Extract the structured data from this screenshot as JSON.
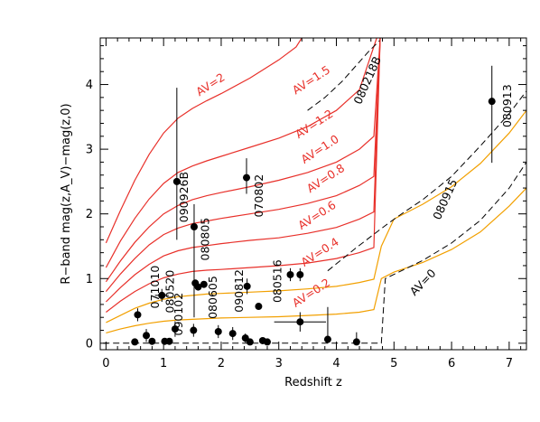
{
  "chart_data": {
    "type": "scatter",
    "title": "",
    "xlabel": "Redshift z",
    "ylabel": "R−band mag(z,A_V)−mag(z,0)",
    "xlim": [
      -0.1,
      7.3
    ],
    "ylim": [
      -0.1,
      4.72
    ],
    "grid": false,
    "legend": "none",
    "xticks": [
      0,
      1,
      2,
      3,
      4,
      5,
      6,
      7
    ],
    "yticks": [
      0,
      1,
      2,
      3,
      4
    ],
    "colors": {
      "av_red": "#e8302a",
      "av_orange": "#f2a000",
      "dashed": "#000000",
      "points": "#000000"
    },
    "curves": [
      {
        "label": "AV=2",
        "color": "red",
        "dash": false,
        "points": [
          [
            0,
            1.55
          ],
          [
            0.25,
            2.05
          ],
          [
            0.5,
            2.52
          ],
          [
            0.75,
            2.92
          ],
          [
            1.0,
            3.25
          ],
          [
            1.25,
            3.48
          ],
          [
            1.5,
            3.63
          ],
          [
            1.75,
            3.75
          ],
          [
            2.0,
            3.86
          ],
          [
            2.5,
            4.1
          ],
          [
            3.0,
            4.38
          ],
          [
            3.3,
            4.58
          ],
          [
            3.4,
            4.72
          ]
        ]
      },
      {
        "label": "AV=1.5",
        "color": "red",
        "dash": false,
        "points": [
          [
            0,
            1.17
          ],
          [
            0.25,
            1.58
          ],
          [
            0.5,
            1.93
          ],
          [
            0.75,
            2.23
          ],
          [
            1.0,
            2.47
          ],
          [
            1.25,
            2.64
          ],
          [
            1.5,
            2.74
          ],
          [
            1.75,
            2.82
          ],
          [
            2.0,
            2.89
          ],
          [
            2.5,
            3.03
          ],
          [
            3.0,
            3.17
          ],
          [
            3.5,
            3.35
          ],
          [
            4.0,
            3.6
          ],
          [
            4.4,
            3.92
          ],
          [
            4.7,
            4.72
          ]
        ]
      },
      {
        "label": "AV=1.2",
        "color": "red",
        "dash": false,
        "points": [
          [
            0,
            0.95
          ],
          [
            0.25,
            1.27
          ],
          [
            0.5,
            1.56
          ],
          [
            0.75,
            1.8
          ],
          [
            1.0,
            2.0
          ],
          [
            1.25,
            2.13
          ],
          [
            1.5,
            2.22
          ],
          [
            1.75,
            2.28
          ],
          [
            2.0,
            2.33
          ],
          [
            2.5,
            2.42
          ],
          [
            3.0,
            2.52
          ],
          [
            3.5,
            2.64
          ],
          [
            4.0,
            2.8
          ],
          [
            4.4,
            3.0
          ],
          [
            4.65,
            3.2
          ],
          [
            4.76,
            4.72
          ]
        ]
      },
      {
        "label": "AV=1.0",
        "color": "red",
        "dash": false,
        "points": [
          [
            0,
            0.8
          ],
          [
            0.25,
            1.07
          ],
          [
            0.5,
            1.31
          ],
          [
            0.75,
            1.52
          ],
          [
            1.0,
            1.68
          ],
          [
            1.25,
            1.78
          ],
          [
            1.5,
            1.85
          ],
          [
            1.75,
            1.89
          ],
          [
            2.0,
            1.93
          ],
          [
            2.5,
            2.0
          ],
          [
            3.0,
            2.07
          ],
          [
            3.5,
            2.16
          ],
          [
            4.0,
            2.28
          ],
          [
            4.4,
            2.44
          ],
          [
            4.65,
            2.58
          ],
          [
            4.76,
            4.72
          ]
        ]
      },
      {
        "label": "AV=0.8",
        "color": "red",
        "dash": false,
        "points": [
          [
            0,
            0.64
          ],
          [
            0.25,
            0.86
          ],
          [
            0.5,
            1.06
          ],
          [
            0.75,
            1.22
          ],
          [
            1.0,
            1.35
          ],
          [
            1.25,
            1.43
          ],
          [
            1.5,
            1.48
          ],
          [
            1.75,
            1.51
          ],
          [
            2.0,
            1.54
          ],
          [
            2.5,
            1.59
          ],
          [
            3.0,
            1.63
          ],
          [
            3.5,
            1.7
          ],
          [
            4.0,
            1.79
          ],
          [
            4.4,
            1.92
          ],
          [
            4.65,
            2.03
          ],
          [
            4.76,
            4.72
          ]
        ]
      },
      {
        "label": "AV=0.6",
        "color": "red",
        "dash": false,
        "points": [
          [
            0,
            0.48
          ],
          [
            0.25,
            0.65
          ],
          [
            0.5,
            0.8
          ],
          [
            0.75,
            0.92
          ],
          [
            1.0,
            1.01
          ],
          [
            1.25,
            1.07
          ],
          [
            1.5,
            1.11
          ],
          [
            1.75,
            1.13
          ],
          [
            2.0,
            1.14
          ],
          [
            2.5,
            1.17
          ],
          [
            3.0,
            1.2
          ],
          [
            3.5,
            1.24
          ],
          [
            4.0,
            1.31
          ],
          [
            4.4,
            1.4
          ],
          [
            4.65,
            1.48
          ],
          [
            4.76,
            4.72
          ]
        ]
      },
      {
        "label": "AV=0.4",
        "color": "orange",
        "dash": false,
        "points": [
          [
            0,
            0.32
          ],
          [
            0.25,
            0.43
          ],
          [
            0.5,
            0.54
          ],
          [
            0.75,
            0.62
          ],
          [
            1.0,
            0.68
          ],
          [
            1.25,
            0.72
          ],
          [
            1.5,
            0.74
          ],
          [
            1.75,
            0.76
          ],
          [
            2.0,
            0.77
          ],
          [
            2.5,
            0.79
          ],
          [
            3.0,
            0.81
          ],
          [
            3.5,
            0.84
          ],
          [
            4.0,
            0.88
          ],
          [
            4.4,
            0.94
          ],
          [
            4.65,
            0.99
          ],
          [
            4.78,
            1.5
          ],
          [
            5.0,
            1.92
          ],
          [
            5.5,
            2.15
          ],
          [
            6.0,
            2.42
          ],
          [
            6.5,
            2.78
          ],
          [
            7.0,
            3.25
          ],
          [
            7.3,
            3.6
          ]
        ]
      },
      {
        "label": "AV=0.2",
        "color": "orange",
        "dash": false,
        "points": [
          [
            0,
            0.16
          ],
          [
            0.25,
            0.22
          ],
          [
            0.5,
            0.27
          ],
          [
            0.75,
            0.31
          ],
          [
            1.0,
            0.34
          ],
          [
            1.25,
            0.36
          ],
          [
            1.5,
            0.37
          ],
          [
            1.75,
            0.38
          ],
          [
            2.0,
            0.39
          ],
          [
            2.5,
            0.4
          ],
          [
            3.0,
            0.41
          ],
          [
            3.5,
            0.43
          ],
          [
            4.0,
            0.45
          ],
          [
            4.4,
            0.48
          ],
          [
            4.65,
            0.52
          ],
          [
            4.78,
            1.0
          ],
          [
            5.0,
            1.1
          ],
          [
            5.5,
            1.25
          ],
          [
            6.0,
            1.45
          ],
          [
            6.5,
            1.72
          ],
          [
            7.0,
            2.12
          ],
          [
            7.3,
            2.4
          ]
        ]
      },
      {
        "label": "080218B",
        "color": "dashed",
        "dash": true,
        "points": [
          [
            3.5,
            3.6
          ],
          [
            3.8,
            3.8
          ],
          [
            4.1,
            4.05
          ],
          [
            4.35,
            4.3
          ],
          [
            4.55,
            4.5
          ],
          [
            4.75,
            4.68
          ]
        ]
      },
      {
        "label": "080915",
        "color": "dashed",
        "dash": true,
        "points": [
          [
            3.85,
            1.12
          ],
          [
            4.1,
            1.3
          ],
          [
            4.35,
            1.48
          ],
          [
            4.6,
            1.65
          ],
          [
            4.85,
            1.82
          ],
          [
            5.1,
            1.98
          ],
          [
            5.5,
            2.22
          ],
          [
            6.0,
            2.58
          ],
          [
            6.5,
            3.05
          ],
          [
            6.8,
            3.35
          ],
          [
            7.0,
            3.55
          ],
          [
            7.3,
            3.9
          ]
        ]
      },
      {
        "label": "AV=0",
        "color": "dashed",
        "dash": true,
        "points": [
          [
            -0.05,
            0.0
          ],
          [
            4.78,
            0.0
          ],
          [
            4.85,
            1.0
          ],
          [
            5.5,
            1.28
          ],
          [
            6.0,
            1.55
          ],
          [
            6.5,
            1.9
          ],
          [
            7.0,
            2.4
          ],
          [
            7.3,
            2.8
          ]
        ]
      }
    ],
    "curve_labels": [
      {
        "text": "AV=2",
        "x": 1.85,
        "y": 3.95,
        "angle": -33,
        "color": "red"
      },
      {
        "text": "AV=1.5",
        "x": 3.6,
        "y": 4.02,
        "angle": -33,
        "color": "red"
      },
      {
        "text": "AV=1.2",
        "x": 3.65,
        "y": 3.34,
        "angle": -33,
        "color": "red"
      },
      {
        "text": "AV=1.0",
        "x": 3.75,
        "y": 2.95,
        "angle": -33,
        "color": "red"
      },
      {
        "text": "AV=0.8",
        "x": 3.85,
        "y": 2.5,
        "angle": -33,
        "color": "red"
      },
      {
        "text": "AV=0.6",
        "x": 3.7,
        "y": 1.93,
        "angle": -33,
        "color": "red"
      },
      {
        "text": "AV=0.4",
        "x": 3.75,
        "y": 1.36,
        "angle": -33,
        "color": "red"
      },
      {
        "text": "AV=0.2",
        "x": 3.6,
        "y": 0.73,
        "angle": -33,
        "color": "red"
      },
      {
        "text": "AV=0",
        "x": 5.55,
        "y": 0.9,
        "angle": -46,
        "color": "black"
      },
      {
        "text": "080218B",
        "x": 4.6,
        "y": 4.04,
        "angle": -66,
        "color": "black"
      },
      {
        "text": "080915",
        "x": 5.95,
        "y": 2.2,
        "angle": -66,
        "color": "black"
      }
    ],
    "points": [
      {
        "x": 0.5,
        "y": 0.02,
        "xerr": 0,
        "yerr_lo": 0,
        "yerr_hi": 0
      },
      {
        "x": 0.55,
        "y": 0.44,
        "xerr": 0,
        "yerr_lo": 0.1,
        "yerr_hi": 0.1
      },
      {
        "x": 0.7,
        "y": 0.12,
        "xerr": 0,
        "yerr_lo": 0.1,
        "yerr_hi": 0.1
      },
      {
        "x": 0.8,
        "y": 0.03,
        "xerr": 0,
        "yerr_lo": 0,
        "yerr_hi": 0
      },
      {
        "x": 0.97,
        "y": 0.74,
        "xerr": 0.12,
        "yerr_lo": 0.1,
        "yerr_hi": 0.1
      },
      {
        "x": 1.02,
        "y": 0.03,
        "xerr": 0,
        "yerr_lo": 0,
        "yerr_hi": 0
      },
      {
        "x": 1.1,
        "y": 0.03,
        "xerr": 0,
        "yerr_lo": 0,
        "yerr_hi": 0
      },
      {
        "x": 1.2,
        "y": 0.22,
        "xerr": 0,
        "yerr_lo": 0.12,
        "yerr_hi": 0.12
      },
      {
        "x": 1.23,
        "y": 2.5,
        "xerr": 0,
        "yerr_lo": 0.9,
        "yerr_hi": 1.45
      },
      {
        "x": 1.52,
        "y": 0.2,
        "xerr": 0,
        "yerr_lo": 0.1,
        "yerr_hi": 0.1
      },
      {
        "x": 1.53,
        "y": 1.8,
        "xerr": 0,
        "yerr_lo": 1.4,
        "yerr_hi": 0.35
      },
      {
        "x": 1.55,
        "y": 0.93,
        "xerr": 0,
        "yerr_lo": 0,
        "yerr_hi": 0
      },
      {
        "x": 1.6,
        "y": 0.87,
        "xerr": 0,
        "yerr_lo": 0,
        "yerr_hi": 0
      },
      {
        "x": 1.7,
        "y": 0.91,
        "xerr": 0,
        "yerr_lo": 0,
        "yerr_hi": 0
      },
      {
        "x": 1.95,
        "y": 0.18,
        "xerr": 0,
        "yerr_lo": 0.1,
        "yerr_hi": 0.1
      },
      {
        "x": 2.2,
        "y": 0.15,
        "xerr": 0,
        "yerr_lo": 0.1,
        "yerr_hi": 0.1
      },
      {
        "x": 2.42,
        "y": 0.08,
        "xerr": 0,
        "yerr_lo": 0.07,
        "yerr_hi": 0.07
      },
      {
        "x": 2.44,
        "y": 2.56,
        "xerr": 0,
        "yerr_lo": 0.25,
        "yerr_hi": 0.3
      },
      {
        "x": 2.45,
        "y": 0.88,
        "xerr": 0,
        "yerr_lo": 0.12,
        "yerr_hi": 0.12
      },
      {
        "x": 2.5,
        "y": 0.02,
        "xerr": 0,
        "yerr_lo": 0,
        "yerr_hi": 0
      },
      {
        "x": 2.65,
        "y": 0.57,
        "xerr": 0,
        "yerr_lo": 0,
        "yerr_hi": 0
      },
      {
        "x": 2.72,
        "y": 0.04,
        "xerr": 0,
        "yerr_lo": 0.05,
        "yerr_hi": 0.05
      },
      {
        "x": 2.8,
        "y": 0.02,
        "xerr": 0,
        "yerr_lo": 0,
        "yerr_hi": 0
      },
      {
        "x": 3.2,
        "y": 1.06,
        "xerr": 0,
        "yerr_lo": 0.1,
        "yerr_hi": 0.1
      },
      {
        "x": 3.37,
        "y": 1.06,
        "xerr": 0,
        "yerr_lo": 0.1,
        "yerr_hi": 0.1
      },
      {
        "x": 3.37,
        "y": 0.33,
        "xerr": 0.45,
        "yerr_lo": 0.15,
        "yerr_hi": 0.15
      },
      {
        "x": 3.85,
        "y": 0.06,
        "xerr": 0,
        "yerr_lo": 0.06,
        "yerr_hi": 0.5
      },
      {
        "x": 4.35,
        "y": 0.02,
        "xerr": 0,
        "yerr_lo": 0,
        "yerr_hi": 0.15
      },
      {
        "x": 6.7,
        "y": 3.74,
        "xerr": 0,
        "yerr_lo": 0.95,
        "yerr_hi": 0.55
      }
    ],
    "point_labels": [
      {
        "text": "090926B",
        "x": 1.42,
        "y": 2.26
      },
      {
        "text": "070802",
        "x": 2.72,
        "y": 2.28
      },
      {
        "text": "080805",
        "x": 1.79,
        "y": 1.61
      },
      {
        "text": "080520",
        "x": 1.18,
        "y": 0.8
      },
      {
        "text": "071010",
        "x": 0.92,
        "y": 0.87
      },
      {
        "text": "090102",
        "x": 1.33,
        "y": 0.45
      },
      {
        "text": "080605",
        "x": 1.92,
        "y": 0.71
      },
      {
        "text": "090812",
        "x": 2.38,
        "y": 0.81
      },
      {
        "text": "080516",
        "x": 3.04,
        "y": 0.96
      },
      {
        "text": "080913",
        "x": 7.03,
        "y": 3.67
      }
    ]
  }
}
